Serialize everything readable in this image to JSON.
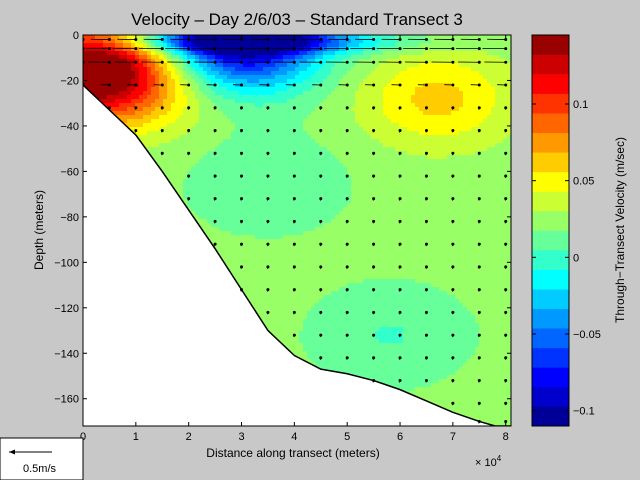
{
  "chart_data": {
    "type": "heatmap",
    "title": "Velocity – Day 2/6/03 – Standard Transect 3",
    "xlabel": "Distance along transect (meters)",
    "ylabel": "Depth (meters)",
    "x_multiplier_label": "× 10",
    "x_multiplier_exponent": "4",
    "x_ticks": [
      "0",
      "1",
      "2",
      "3",
      "4",
      "5",
      "6",
      "7",
      "8"
    ],
    "y_ticks": [
      "0",
      "−20",
      "−40",
      "−60",
      "−80",
      "−100",
      "−120",
      "−140",
      "−160"
    ],
    "x_tick_values": [
      0,
      10000,
      20000,
      30000,
      40000,
      50000,
      60000,
      70000,
      80000
    ],
    "y_tick_values": [
      0,
      -20,
      -40,
      -60,
      -80,
      -100,
      -120,
      -140,
      -160
    ],
    "xlim": [
      0,
      81000
    ],
    "ylim": [
      -172,
      0
    ],
    "colorbar": {
      "label": "Through−Transect Velocity (m/sec)",
      "range": [
        -0.11,
        0.145
      ],
      "ticks": [
        "−0.1",
        "−0.05",
        "0",
        "0.05",
        "0.1"
      ],
      "tick_values": [
        -0.1,
        -0.05,
        0,
        0.05,
        0.1
      ],
      "colormap": "jet",
      "levels": 20
    },
    "bottom_profile": [
      [
        0,
        -22
      ],
      [
        5000,
        -33
      ],
      [
        10000,
        -44
      ],
      [
        15000,
        -60
      ],
      [
        20000,
        -77
      ],
      [
        25000,
        -94
      ],
      [
        30000,
        -112
      ],
      [
        35000,
        -130
      ],
      [
        40000,
        -141
      ],
      [
        45000,
        -147
      ],
      [
        50000,
        -149
      ],
      [
        55000,
        -152
      ],
      [
        60000,
        -156
      ],
      [
        65000,
        -161
      ],
      [
        70000,
        -166
      ],
      [
        75000,
        -170
      ],
      [
        78000,
        -172
      ],
      [
        81000,
        -172
      ]
    ],
    "sample_x": [
      0,
      5000,
      10000,
      15000,
      20000,
      25000,
      30000,
      35000,
      40000,
      45000,
      50000,
      55000,
      60000,
      65000,
      70000,
      75000,
      80000
    ],
    "depth_samples": [
      -2,
      -6,
      -12,
      -22,
      -32,
      -42,
      -52,
      -62,
      -72,
      -82,
      -92,
      -102,
      -112,
      -122,
      -132,
      -142,
      -152,
      -162,
      -170
    ],
    "velocity_features": [
      {
        "x": 0,
        "y": -15,
        "value": 0.145,
        "note": "red core at west end"
      },
      {
        "x": 30000,
        "y": -2,
        "value": -0.11,
        "note": "surface minimum"
      },
      {
        "x": 67000,
        "y": -28,
        "value": 0.06
      },
      {
        "x": 35000,
        "y": -65,
        "value": 0.005
      },
      {
        "x": 58000,
        "y": -132,
        "value": 0.004
      },
      {
        "x": 10000,
        "y": -20,
        "value": 0.065
      }
    ],
    "reference_vector": {
      "label": "0.5m/s",
      "value": 0.5
    }
  }
}
